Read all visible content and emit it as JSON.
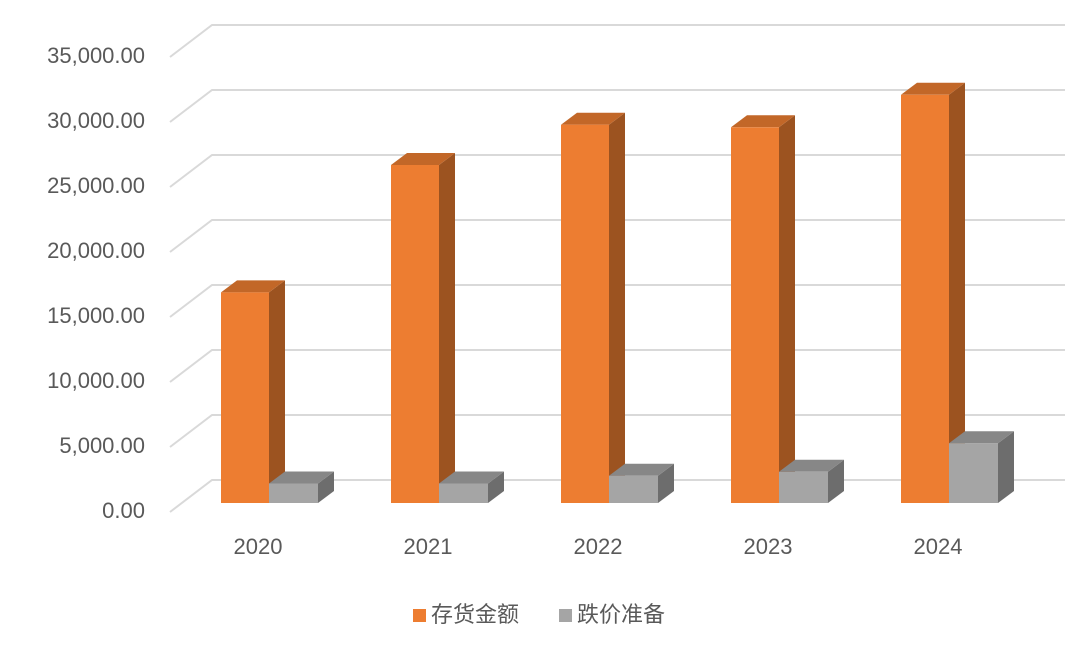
{
  "chart_data": {
    "type": "bar3d",
    "categories": [
      "2020",
      "2021",
      "2022",
      "2023",
      "2024"
    ],
    "series": [
      {
        "name": "存货金额",
        "color": "#ED7D31",
        "values": [
          16200,
          26000,
          29100,
          28900,
          31400
        ]
      },
      {
        "name": "跌价准备",
        "color": "#A5A5A5",
        "values": [
          1500,
          1500,
          2100,
          2400,
          4600
        ]
      }
    ],
    "ylim": [
      0,
      35000
    ],
    "yticks": [
      {
        "value": 0,
        "label": "0.00"
      },
      {
        "value": 5000,
        "label": "5,000.00"
      },
      {
        "value": 10000,
        "label": "10,000.00"
      },
      {
        "value": 15000,
        "label": "15,000.00"
      },
      {
        "value": 20000,
        "label": "20,000.00"
      },
      {
        "value": 25000,
        "label": "25,000.00"
      },
      {
        "value": 30000,
        "label": "30,000.00"
      },
      {
        "value": 35000,
        "label": "35,000.00"
      }
    ],
    "grid": true,
    "legend": "bottom"
  }
}
